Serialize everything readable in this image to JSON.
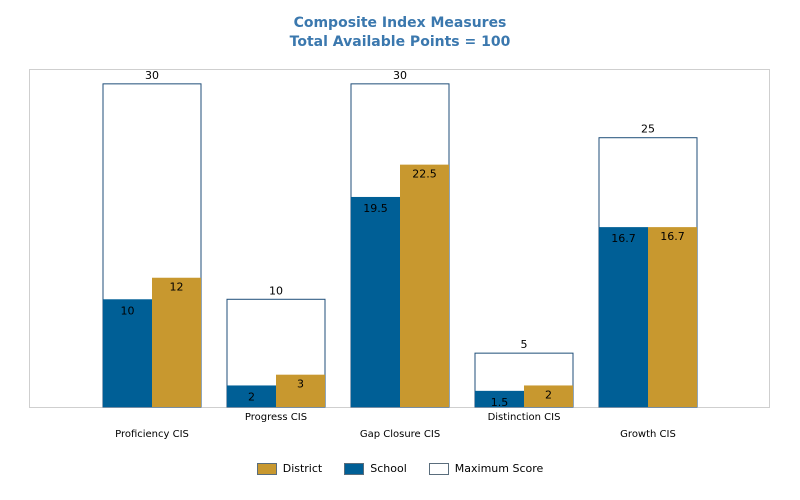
{
  "chart_data": {
    "type": "bar",
    "title": "Composite Index Measures",
    "subtitle": "Total Available Points = 100",
    "categories": [
      "Proficiency CIS",
      "Progress CIS",
      "Gap Closure CIS",
      "Distinction CIS",
      "Growth CIS"
    ],
    "series": [
      {
        "name": "Maximum Score",
        "values": [
          30,
          10,
          30,
          5,
          25
        ],
        "color": "#ffffff",
        "stroke": "#1f4e79"
      },
      {
        "name": "School",
        "values": [
          10,
          2,
          19.5,
          1.5,
          16.7
        ],
        "color": "#005f96"
      },
      {
        "name": "District",
        "values": [
          12,
          3,
          22.5,
          2,
          16.7
        ],
        "color": "#c8982f"
      }
    ],
    "ylim": [
      0,
      35
    ],
    "grid": false,
    "legend": {
      "placement": "bottom",
      "items": [
        {
          "label": "District",
          "color": "#c8982f"
        },
        {
          "label": "School",
          "color": "#005f96"
        },
        {
          "label": "Maximum Score",
          "color": "#ffffff"
        }
      ]
    }
  }
}
